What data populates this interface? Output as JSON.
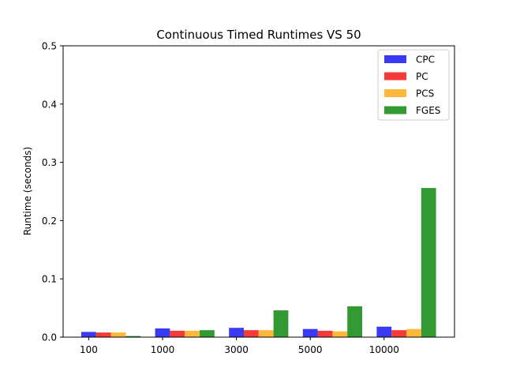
{
  "chart_data": {
    "type": "bar",
    "title": "Continuous Timed Runtimes VS 50",
    "xlabel": "",
    "ylabel": "Runtime (seconds)",
    "ylim": [
      0,
      0.5
    ],
    "yticks": [
      "0.0",
      "0.1",
      "0.2",
      "0.3",
      "0.4",
      "0.5"
    ],
    "categories": [
      "100",
      "1000",
      "3000",
      "5000",
      "10000"
    ],
    "grid": false,
    "legend_position": "top-right",
    "series": [
      {
        "name": "CPC",
        "color": "#3a3af5",
        "values": [
          0.009,
          0.015,
          0.016,
          0.014,
          0.018
        ]
      },
      {
        "name": "PC",
        "color": "#f53a3a",
        "values": [
          0.008,
          0.011,
          0.012,
          0.011,
          0.012
        ]
      },
      {
        "name": "PCS",
        "color": "#ffb83a",
        "values": [
          0.008,
          0.011,
          0.012,
          0.01,
          0.014
        ]
      },
      {
        "name": "FGES",
        "color": "#339933",
        "values": [
          0.002,
          0.012,
          0.046,
          0.053,
          0.256
        ]
      }
    ]
  }
}
